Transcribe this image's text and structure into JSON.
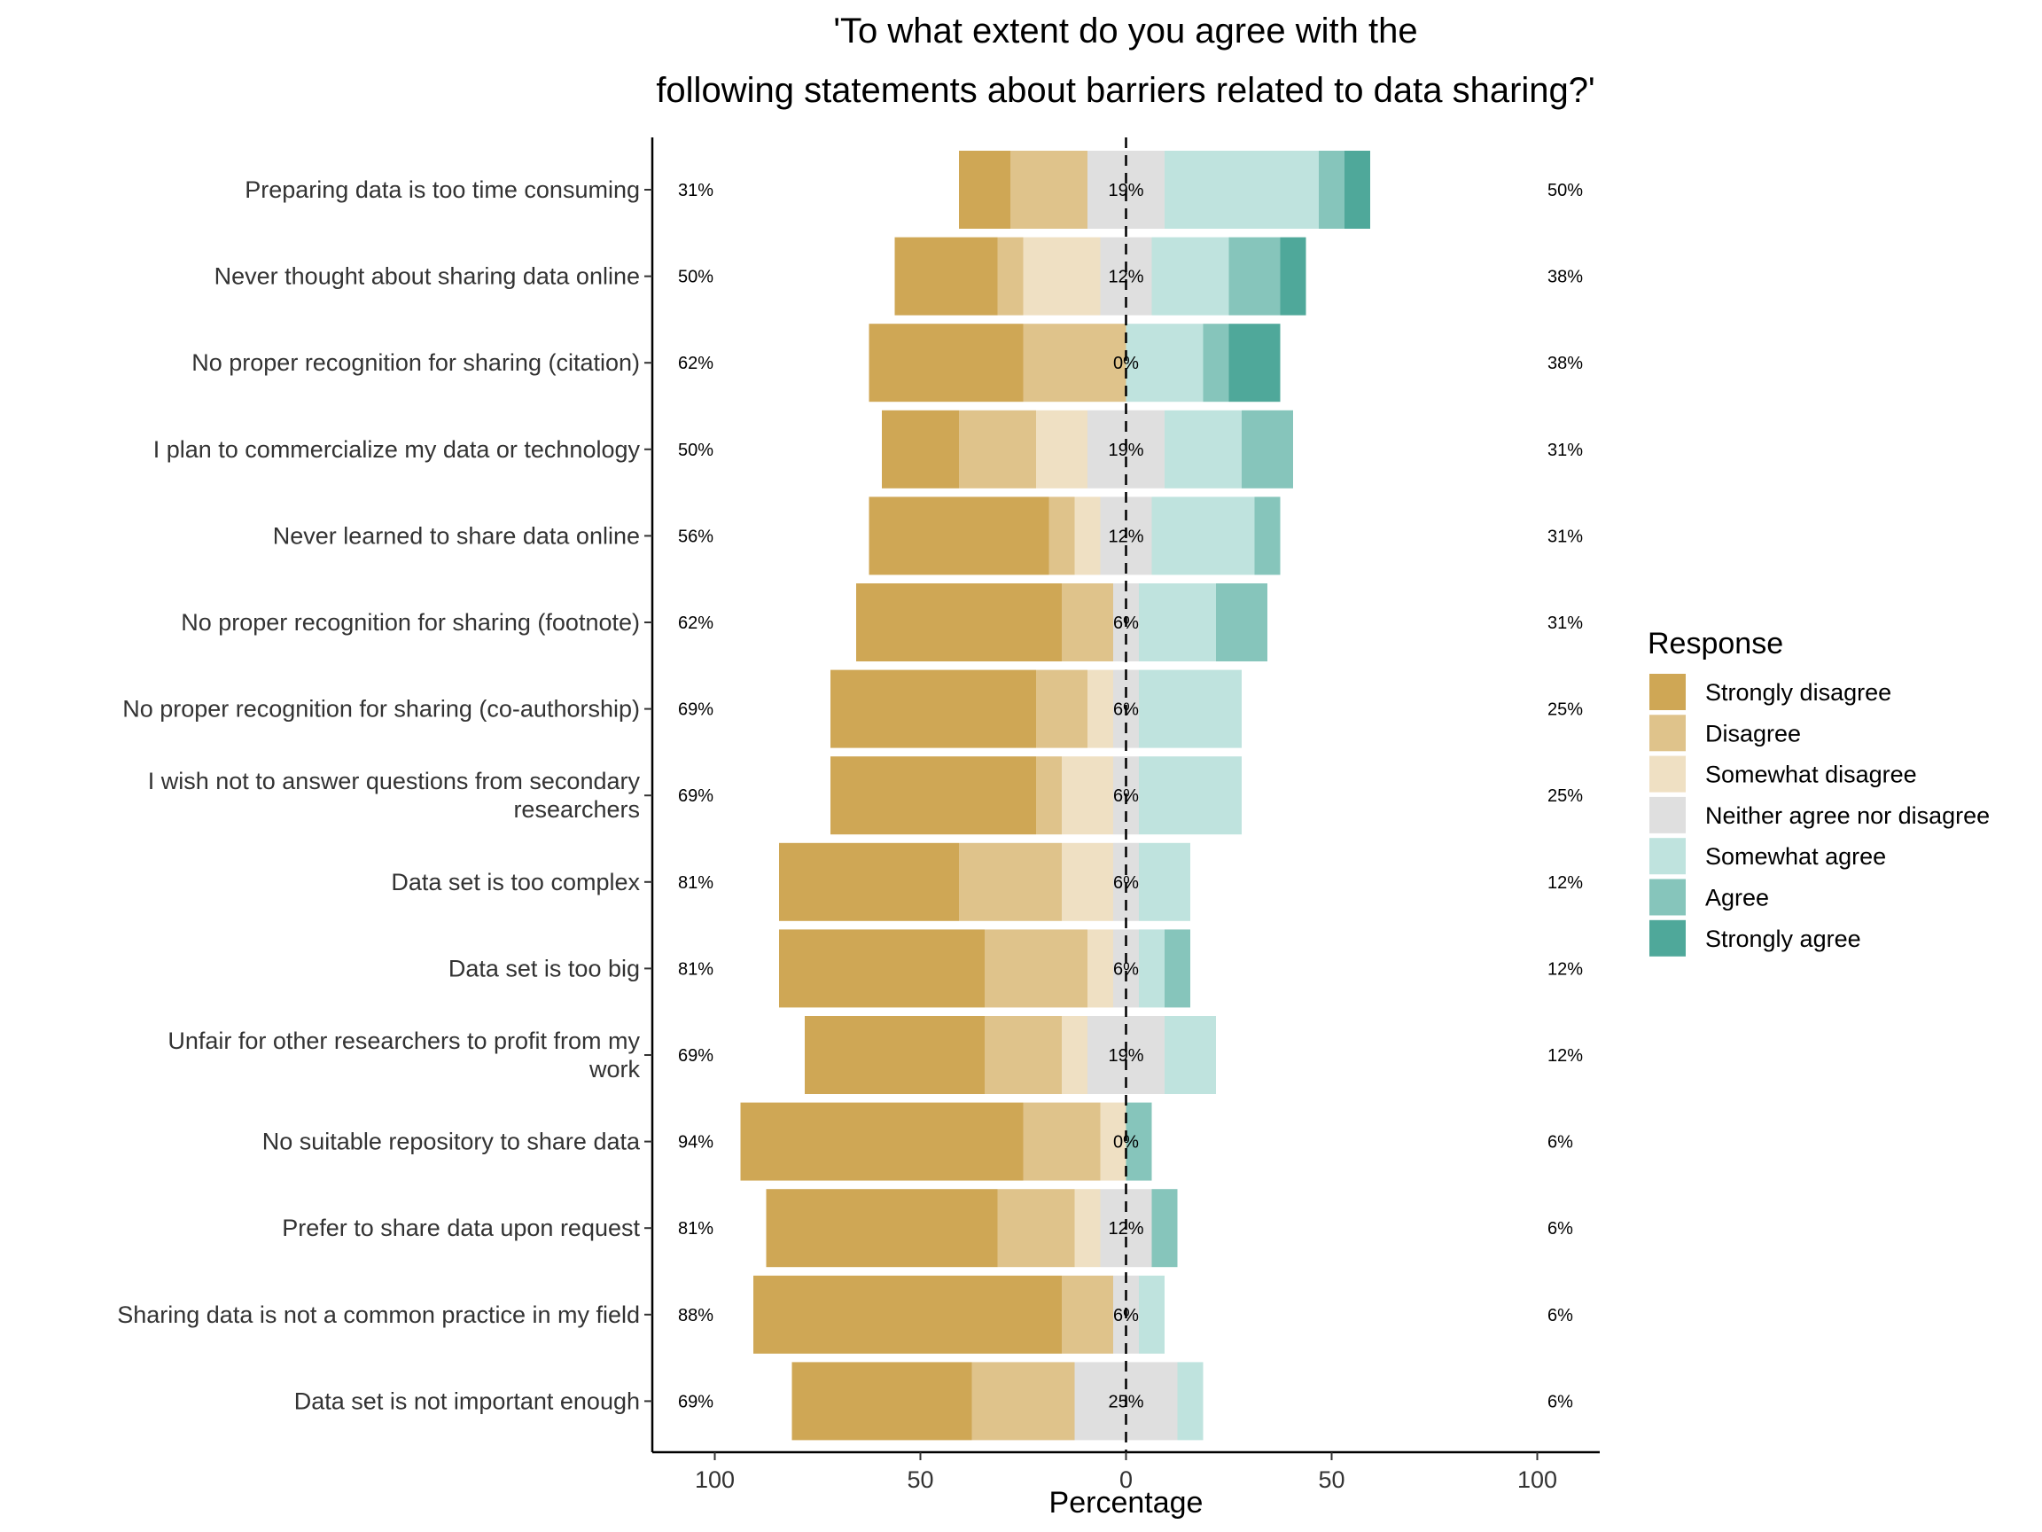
{
  "chart_data": {
    "type": "bar",
    "orientation": "horizontal",
    "stacking": "diverging",
    "title": [
      "'To what extent do you agree with the",
      "following statements about barriers related to data sharing?'"
    ],
    "xlabel": "Percentage",
    "ylabel": "",
    "xlim": [
      -100,
      100
    ],
    "xticks": [
      -100,
      -50,
      0,
      50,
      100
    ],
    "xtick_labels": [
      "100",
      "50",
      "0",
      "50",
      "100"
    ],
    "grid": false,
    "legend": {
      "title": "Response",
      "position": "right"
    },
    "levels": [
      {
        "name": "Strongly disagree",
        "color": "#CFA755"
      },
      {
        "name": "Disagree",
        "color": "#DFC38B"
      },
      {
        "name": "Somewhat disagree",
        "color": "#EFE0C3"
      },
      {
        "name": "Neither agree nor disagree",
        "color": "#DFDFDF"
      },
      {
        "name": "Somewhat agree",
        "color": "#BFE3DE"
      },
      {
        "name": "Agree",
        "color": "#86C5BB"
      },
      {
        "name": "Strongly agree",
        "color": "#4FA89A"
      }
    ],
    "categories": [
      {
        "label": [
          "Preparing data is too time consuming"
        ],
        "values": [
          12.5,
          18.75,
          0,
          18.75,
          37.5,
          6.25,
          6.25
        ],
        "low": "31%",
        "neutral": "19%",
        "high": "50%"
      },
      {
        "label": [
          "Never thought about sharing data online"
        ],
        "values": [
          25,
          6.25,
          18.75,
          12.5,
          18.75,
          12.5,
          6.25
        ],
        "low": "50%",
        "neutral": "12%",
        "high": "38%"
      },
      {
        "label": [
          "No proper recognition for sharing (citation)"
        ],
        "values": [
          37.5,
          25,
          0,
          0,
          18.75,
          6.25,
          12.5
        ],
        "low": "62%",
        "neutral": "0%",
        "high": "38%"
      },
      {
        "label": [
          "I plan to commercialize my data or technology"
        ],
        "values": [
          18.75,
          18.75,
          12.5,
          18.75,
          18.75,
          12.5,
          0
        ],
        "low": "50%",
        "neutral": "19%",
        "high": "31%"
      },
      {
        "label": [
          "Never learned to share data online"
        ],
        "values": [
          43.75,
          6.25,
          6.25,
          12.5,
          25,
          6.25,
          0
        ],
        "low": "56%",
        "neutral": "12%",
        "high": "31%"
      },
      {
        "label": [
          "No proper recognition for sharing (footnote)"
        ],
        "values": [
          50,
          12.5,
          0,
          6.25,
          18.75,
          12.5,
          0
        ],
        "low": "62%",
        "neutral": "6%",
        "high": "31%"
      },
      {
        "label": [
          "No proper recognition for sharing (co-authorship)"
        ],
        "values": [
          50,
          12.5,
          6.25,
          6.25,
          25,
          0,
          0
        ],
        "low": "69%",
        "neutral": "6%",
        "high": "25%"
      },
      {
        "label": [
          "I wish not to answer questions from secondary",
          "researchers"
        ],
        "values": [
          50,
          6.25,
          12.5,
          6.25,
          25,
          0,
          0
        ],
        "low": "69%",
        "neutral": "6%",
        "high": "25%"
      },
      {
        "label": [
          "Data set is too complex"
        ],
        "values": [
          43.75,
          25,
          12.5,
          6.25,
          12.5,
          0,
          0
        ],
        "low": "81%",
        "neutral": "6%",
        "high": "12%"
      },
      {
        "label": [
          "Data set is too big"
        ],
        "values": [
          50,
          25,
          6.25,
          6.25,
          6.25,
          6.25,
          0
        ],
        "low": "81%",
        "neutral": "6%",
        "high": "12%"
      },
      {
        "label": [
          "Unfair for other researchers to profit from my",
          "work"
        ],
        "values": [
          43.75,
          18.75,
          6.25,
          18.75,
          12.5,
          0,
          0
        ],
        "low": "69%",
        "neutral": "19%",
        "high": "12%"
      },
      {
        "label": [
          "No suitable repository to share data"
        ],
        "values": [
          68.75,
          18.75,
          6.25,
          0,
          0,
          6.25,
          0
        ],
        "low": "94%",
        "neutral": "0%",
        "high": "6%"
      },
      {
        "label": [
          "Prefer to share data upon request"
        ],
        "values": [
          56.25,
          18.75,
          6.25,
          12.5,
          0,
          6.25,
          0
        ],
        "low": "81%",
        "neutral": "12%",
        "high": "6%"
      },
      {
        "label": [
          "Sharing data is not a common practice in my field"
        ],
        "values": [
          75,
          12.5,
          0,
          6.25,
          6.25,
          0,
          0
        ],
        "low": "88%",
        "neutral": "6%",
        "high": "6%"
      },
      {
        "label": [
          "Data set is not important enough"
        ],
        "values": [
          43.75,
          25,
          0,
          25,
          6.25,
          0,
          0
        ],
        "low": "69%",
        "neutral": "25%",
        "high": "6%"
      }
    ]
  }
}
